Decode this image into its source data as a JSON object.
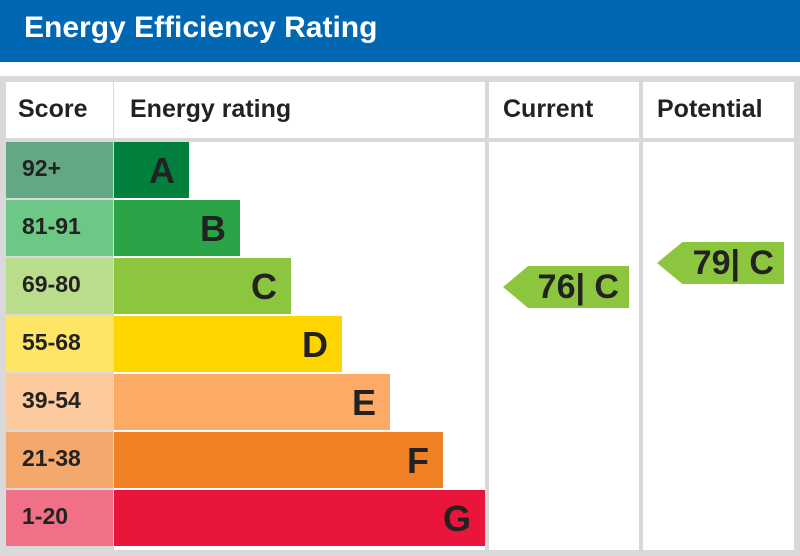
{
  "title": "Energy Efficiency Rating",
  "columns": {
    "score": "Score",
    "rating": "Energy rating",
    "current": "Current",
    "potential": "Potential"
  },
  "colors": {
    "header": "#0067b3",
    "grid": "#d9d9d9"
  },
  "chart_data": {
    "type": "table",
    "bands": [
      {
        "letter": "A",
        "score": "92+",
        "color": "#007f3d",
        "score_color": "#64a883"
      },
      {
        "letter": "B",
        "score": "81-91",
        "color": "#2aa447",
        "score_color": "#6ec885"
      },
      {
        "letter": "C",
        "score": "69-80",
        "color": "#8cc63f",
        "score_color": "#badd8c"
      },
      {
        "letter": "D",
        "score": "55-68",
        "color": "#ffd500",
        "score_color": "#ffe566"
      },
      {
        "letter": "E",
        "score": "39-54",
        "color": "#fcaa65",
        "score_color": "#fdca9d"
      },
      {
        "letter": "F",
        "score": "21-38",
        "color": "#ef8023",
        "score_color": "#f4a86b"
      },
      {
        "letter": "G",
        "score": "1-20",
        "color": "#e9153b",
        "score_color": "#f07088"
      }
    ],
    "current": {
      "value": 76,
      "band": "C",
      "label": "76| C",
      "color": "#8cc63f"
    },
    "potential": {
      "value": 79,
      "band": "C",
      "label": "79| C",
      "color": "#8cc63f"
    }
  }
}
